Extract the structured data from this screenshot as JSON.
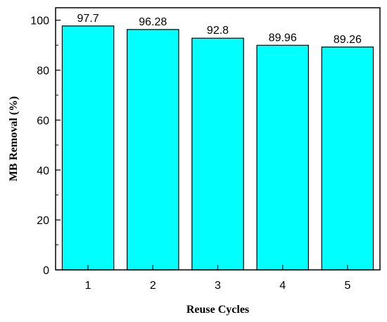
{
  "chart_data": {
    "type": "bar",
    "title": "",
    "xlabel": "Reuse Cycles",
    "ylabel": "MB Removal (%)",
    "categories": [
      "1",
      "2",
      "3",
      "4",
      "5"
    ],
    "values": [
      97.7,
      96.28,
      92.8,
      89.96,
      89.26
    ],
    "data_labels": [
      "97.7",
      "96.28",
      "92.8",
      "89.96",
      "89.26"
    ],
    "ylim": [
      0,
      105
    ],
    "yticks": [
      0,
      20,
      40,
      60,
      80,
      100
    ],
    "grid": false,
    "legend": "none",
    "bar_color": "#00ffff",
    "bar_edge_color": "#000000"
  }
}
